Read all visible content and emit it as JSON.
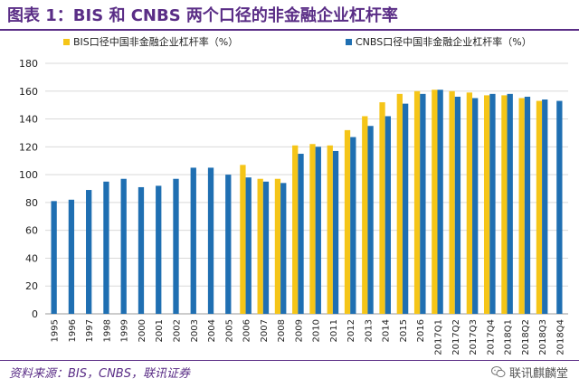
{
  "header": {
    "title": "图表 1：BIS 和 CNBS 两个口径的非金融企业杠杆率"
  },
  "footer": {
    "source": "资料来源：BIS，CNBS，联讯证券",
    "watermark": "联讯麒麟堂"
  },
  "colors": {
    "title": "#5a2d86",
    "bis": "#f5c518",
    "cnbs": "#1f6fb2",
    "grid": "#d9d9d9"
  },
  "icons": {
    "watermark": "wechat-icon"
  },
  "chart_data": {
    "type": "bar",
    "title": "",
    "xlabel": "",
    "ylabel": "",
    "ylim": [
      0,
      180
    ],
    "yticks": [
      0,
      20,
      40,
      60,
      80,
      100,
      120,
      140,
      160,
      180
    ],
    "grid": true,
    "legend_position": "top",
    "categories": [
      "1995",
      "1996",
      "1997",
      "1998",
      "1999",
      "2000",
      "2001",
      "2002",
      "2003",
      "2004",
      "2005",
      "2006",
      "2007",
      "2008",
      "2009",
      "2010",
      "2011",
      "2012",
      "2013",
      "2014",
      "2015",
      "2016",
      "2017Q1",
      "2017Q2",
      "2017Q3",
      "2017Q4",
      "2018Q1",
      "2018Q2",
      "2018Q3",
      "2018Q4"
    ],
    "series": [
      {
        "name": "BIS口径中国非金融企业杠杆率（%）",
        "color": "#f5c518",
        "values": [
          null,
          null,
          null,
          null,
          null,
          null,
          null,
          null,
          null,
          null,
          null,
          107,
          97,
          97,
          121,
          122,
          121,
          132,
          142,
          152,
          158,
          160,
          161,
          160,
          159,
          157,
          157,
          155,
          153,
          null
        ]
      },
      {
        "name": "CNBS口径中国非金融企业杠杆率（%）",
        "color": "#1f6fb2",
        "values": [
          81,
          82,
          89,
          95,
          97,
          91,
          92,
          97,
          105,
          105,
          100,
          98,
          95,
          94,
          115,
          120,
          117,
          127,
          135,
          142,
          151,
          158,
          161,
          156,
          155,
          158,
          158,
          156,
          154,
          153
        ]
      }
    ]
  }
}
